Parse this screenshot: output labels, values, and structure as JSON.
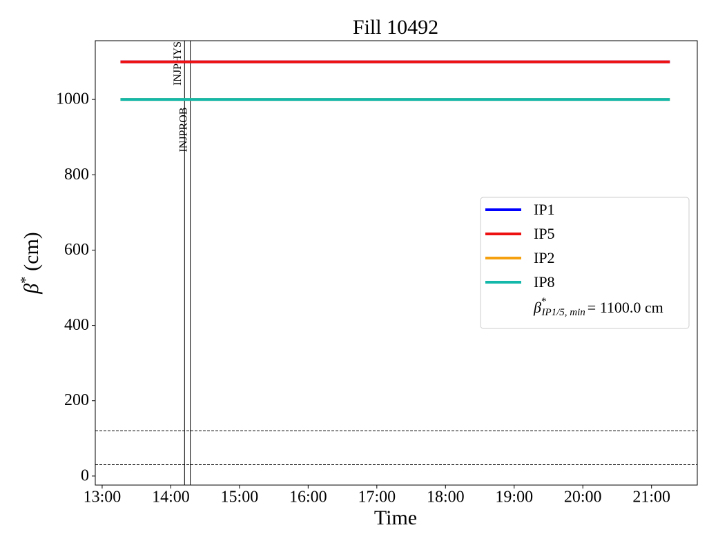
{
  "chart_data": {
    "type": "line",
    "title": "Fill 10492",
    "xlabel": "Time",
    "ylabel": {
      "symbol": "β",
      "sup": "*",
      "text": "(cm)"
    },
    "x": [
      796,
      1276
    ],
    "series": [
      {
        "name": "IP1",
        "color": "#0000ff",
        "values": [
          1100,
          1100
        ]
      },
      {
        "name": "IP5",
        "color": "#ee1111",
        "values": [
          1100,
          1100
        ]
      },
      {
        "name": "IP2",
        "color": "#f5a00f",
        "values": [
          1000,
          1000
        ]
      },
      {
        "name": "IP8",
        "color": "#14b8aa",
        "values": [
          1000,
          1000
        ]
      }
    ],
    "legend_note": {
      "symbol": "β",
      "sup": "*",
      "sub": "IP1/5, min",
      "text": "= 1100.0 cm"
    },
    "legend_position": "center right",
    "xlim": [
      774,
      1300
    ],
    "xticks": [
      {
        "value": 780,
        "label": "13:00"
      },
      {
        "value": 840,
        "label": "14:00"
      },
      {
        "value": 900,
        "label": "15:00"
      },
      {
        "value": 960,
        "label": "16:00"
      },
      {
        "value": 1020,
        "label": "17:00"
      },
      {
        "value": 1080,
        "label": "18:00"
      },
      {
        "value": 1140,
        "label": "19:00"
      },
      {
        "value": 1200,
        "label": "20:00"
      },
      {
        "value": 1260,
        "label": "21:00"
      }
    ],
    "ylim": [
      -24,
      1156
    ],
    "yticks": [
      0,
      200,
      400,
      600,
      800,
      1000
    ],
    "hlines": [
      120,
      30
    ],
    "vlines": [
      {
        "x": 852,
        "label": "INJPHYS"
      },
      {
        "x": 857,
        "label": "INJPROB"
      }
    ]
  }
}
